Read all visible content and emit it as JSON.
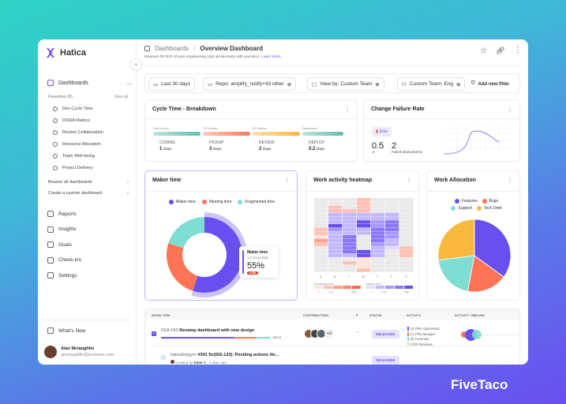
{
  "app": {
    "name": "Hatica",
    "brand": "FiveTaco"
  },
  "sidebar": {
    "dashboards": "Dashboards",
    "favorites": "Favorites (6)",
    "view_all": "View all",
    "favorites_items": [
      "Dev Cycle Time",
      "DORA Metrics",
      "Review Collaboration",
      "Resource Allocation",
      "Team Well-being",
      "Project Delivery"
    ],
    "browse": "Browse all dashboards",
    "create": "Create a custom dashboard",
    "nav": [
      "Reports",
      "Insights",
      "Goals",
      "Check-ins",
      "Settings"
    ],
    "whats_new": "What's New",
    "user": {
      "name": "Alan Mclaughlin",
      "email": "amclaughlin@acmeinc.com"
    }
  },
  "header": {
    "crumb": "Dashboards",
    "sep": "/",
    "title": "Overview Dashboard",
    "subtitle": "Measure thr ROI of your engineering org's productivity with precision.",
    "learn_more": "Learn More"
  },
  "filters": {
    "date": "Last 30 days",
    "repo": "Repo: amplify_notify+43 other",
    "view_by": "View by: Custom Team",
    "team": "Custom Team: Eng",
    "add": "Add new filter"
  },
  "cycle": {
    "title": "Cycle Time -  Breakdown",
    "stages": [
      {
        "label": "First Commit",
        "name": "CODING",
        "value": "1",
        "unit": "Days",
        "color": "#5fbfb0"
      },
      {
        "label": "PR Created",
        "name": "PICKUP",
        "value": "3",
        "unit": "Days",
        "color": "#ff7a5c"
      },
      {
        "label": "PR Review",
        "name": "REVIEW",
        "value": "2",
        "unit": "Days",
        "color": "#f5b83d"
      },
      {
        "label": "Deployment",
        "name": "DEPLOY",
        "value": "0.2",
        "unit": "Days",
        "color": "#5fbfb0"
      }
    ]
  },
  "cfr": {
    "title": "Change Failure Rate",
    "badge": "Elite",
    "rate": "0.5",
    "rate_unit": "%",
    "failed": "2",
    "failed_label": "Failed deployments"
  },
  "maker": {
    "title": "Maker time",
    "legend": [
      {
        "name": "Maker time",
        "color": "#6a4ff0"
      },
      {
        "name": "Meeting time",
        "color": "#ff7456"
      },
      {
        "name": "Fragmented time",
        "color": "#7fded3"
      }
    ],
    "values": [
      55,
      25,
      20
    ],
    "tooltip": {
      "name": "Maker time",
      "sub": "1.2 hours/day",
      "pct": "55%",
      "tag": "LOW"
    }
  },
  "heatmap": {
    "title": "Work activity heatmap",
    "days": [
      "S",
      "M",
      "T",
      "W",
      "T",
      "F",
      "S"
    ],
    "legend_non": "Non working hours",
    "legend_work": "Working hours",
    "low": "Low",
    "high": "High",
    "zero": "0"
  },
  "allocation": {
    "title": "Work Allocation",
    "legend": [
      {
        "name": "Features",
        "color": "#6a4ff0"
      },
      {
        "name": "Bugs",
        "color": "#ff7456"
      },
      {
        "name": "Support",
        "color": "#7fded3"
      },
      {
        "name": "Tech Debt",
        "color": "#f7b93d"
      }
    ],
    "values": [
      35,
      18,
      20,
      27
    ]
  },
  "table": {
    "headers": [
      "WORK ITEM",
      "CONTRIBUTORS",
      "P",
      "STATUS",
      "ACTIVITY",
      "ACTIVITY TIMELINE"
    ],
    "rows": [
      {
        "id": "FEA-243",
        "title": "Revamp dashboard with new design",
        "progress": "18/24",
        "extra": "+2",
        "status": "RELEASED",
        "activity": [
          "15 PRs Openened",
          "14 PRs Merged",
          "40 Commits",
          "0 PR Reviews"
        ]
      },
      {
        "id": "haticahq/gyro",
        "title": "#341 fix(ISS-123): Pending actions thr...",
        "created": "Created by",
        "author": "Katie Y",
        "ago": "· 2 days ago",
        "status": "RELEASED"
      }
    ]
  }
}
